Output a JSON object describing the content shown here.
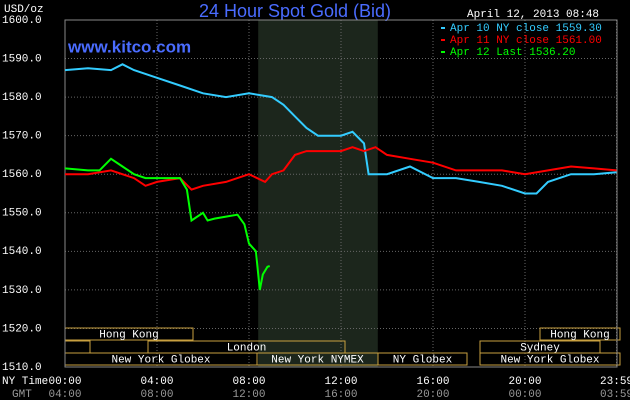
{
  "chart_data": {
    "type": "line",
    "title": "24 Hour Spot Gold (Bid)",
    "y_axis_label": "USD/oz",
    "timestamp": "April 12, 2013 08:48",
    "watermark": "www.kitco.com",
    "x_axis_labels": [
      "NY Time",
      "GMT"
    ],
    "xlim": [
      0,
      24
    ],
    "xticks": [
      {
        "value": 0,
        "label": "00:00"
      },
      {
        "value": 4,
        "label": "04:00"
      },
      {
        "value": 8,
        "label": "08:00"
      },
      {
        "value": 12,
        "label": "12:00"
      },
      {
        "value": 16,
        "label": "16:00"
      },
      {
        "value": 20,
        "label": "20:00"
      },
      {
        "value": 23.98,
        "label": "23:59"
      }
    ],
    "x_secondary_labels": [
      "04:00",
      "08:00",
      "12:00",
      "16:00",
      "20:00",
      "00:00",
      "03:59"
    ],
    "ylim": [
      1510,
      1600
    ],
    "yticks": [
      {
        "value": 1510,
        "label": "1510.0"
      },
      {
        "value": 1520,
        "label": "1520.0"
      },
      {
        "value": 1530,
        "label": "1530.0"
      },
      {
        "value": 1540,
        "label": "1540.0"
      },
      {
        "value": 1550,
        "label": "1550.0"
      },
      {
        "value": 1560,
        "label": "1560.0"
      },
      {
        "value": 1570,
        "label": "1570.0"
      },
      {
        "value": 1580,
        "label": "1580.0"
      },
      {
        "value": 1590,
        "label": "1590.0"
      },
      {
        "value": 1600,
        "label": "1600.0"
      }
    ],
    "grid": true,
    "shaded_range": [
      8.4,
      13.6
    ],
    "markets": [
      "Hong Kong",
      "London",
      "New York Globex",
      "New York NYMEX",
      "NY Globex",
      "Sydney",
      "Hong Kong",
      "New York Globex"
    ],
    "series": [
      {
        "name": "Apr 10 NY close 1559.30",
        "color": "#33ccff",
        "x": [
          0,
          1,
          2,
          2.5,
          3,
          4,
          5,
          6,
          7,
          8,
          9,
          9.5,
          10,
          10.5,
          11,
          11.5,
          12,
          12.5,
          13,
          13.2,
          14,
          15,
          16,
          17,
          18,
          19,
          20,
          20.5,
          21,
          22,
          23,
          23.98
        ],
        "values": [
          1587,
          1587.5,
          1587,
          1588.5,
          1587,
          1585,
          1583,
          1581,
          1580,
          1581,
          1580,
          1578,
          1575,
          1572,
          1570,
          1570,
          1570,
          1571,
          1568,
          1560,
          1560,
          1562,
          1559,
          1559,
          1558,
          1557,
          1555,
          1555,
          1558,
          1560,
          1560,
          1560.5
        ]
      },
      {
        "name": "Apr 11 NY close 1561.00",
        "color": "#ff0000",
        "x": [
          0,
          1,
          2,
          3,
          3.5,
          4,
          5,
          5.5,
          6,
          7,
          8,
          8.7,
          9,
          9.5,
          10,
          10.5,
          11,
          12,
          12.5,
          13,
          13.5,
          14,
          15,
          16,
          17,
          18,
          19,
          20,
          21,
          22,
          23,
          23.98
        ],
        "values": [
          1560,
          1560,
          1561,
          1559,
          1557,
          1558,
          1559,
          1556,
          1557,
          1558,
          1560,
          1558,
          1560,
          1561,
          1565,
          1566,
          1566,
          1566,
          1567,
          1566,
          1567,
          1565,
          1564,
          1563,
          1561,
          1561,
          1561,
          1560,
          1561,
          1562,
          1561.5,
          1561
        ]
      },
      {
        "name": "Apr 12 Last 1536.20",
        "color": "#00ff00",
        "x": [
          0,
          1,
          1.5,
          2,
          2.5,
          3,
          3.5,
          4,
          5,
          5.3,
          5.5,
          6,
          6.2,
          6.5,
          7,
          7.5,
          7.8,
          8,
          8.3,
          8.47,
          8.6,
          8.8,
          8.9
        ],
        "values": [
          1561.5,
          1561,
          1561,
          1564,
          1562,
          1560,
          1559,
          1559,
          1559,
          1556,
          1548,
          1550,
          1548,
          1548.5,
          1549,
          1549.5,
          1547,
          1542,
          1540,
          1530,
          1534,
          1536,
          1536.2
        ]
      }
    ]
  }
}
